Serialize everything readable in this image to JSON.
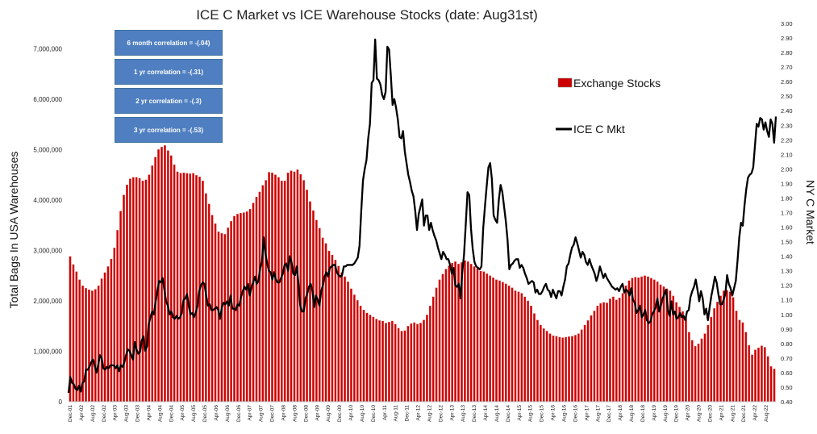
{
  "chart_data": {
    "type": "bar+line",
    "title": "ICE C Market vs ICE Warehouse Stocks (date:  Aug31st)",
    "ylabel": "Total Bags In USA Warehouses",
    "y2label": "NY C Market",
    "ylim": [
      0,
      7500000
    ],
    "y2lim": [
      0.4,
      3.0
    ],
    "y_ticks": [
      "0",
      "1,000,000",
      "2,000,000",
      "3,000,000",
      "4,000,000",
      "5,000,000",
      "6,000,000",
      "7,000,000"
    ],
    "y2_ticks": [
      "0.40",
      "0.50",
      "0.60",
      "0.70",
      "0.80",
      "0.90",
      "1.00",
      "1.10",
      "1.20",
      "1.30",
      "1.40",
      "1.50",
      "1.60",
      "1.70",
      "1.80",
      "1.90",
      "2.00",
      "2.10",
      "2.20",
      "2.30",
      "2.40",
      "2.50",
      "2.60",
      "2.70",
      "2.80",
      "2.90",
      "3.00"
    ],
    "x_ticks": [
      "Dec-01",
      "Apr-02",
      "Aug-02",
      "Dec-02",
      "Apr-03",
      "Aug-03",
      "Dec-03",
      "Apr-04",
      "Aug-04",
      "Dec-04",
      "Apr-05",
      "Aug-05",
      "Dec-05",
      "Apr-06",
      "Aug-06",
      "Dec-06",
      "Apr-07",
      "Aug-07",
      "Dec-07",
      "Apr-08",
      "Aug-08",
      "Dec-08",
      "Apr-09",
      "Aug-09",
      "Dec-09",
      "Apr-10",
      "Aug-10",
      "Dec-10",
      "Apr-11",
      "Aug-11",
      "Dec-11",
      "Apr-12",
      "Aug-12",
      "Dec-12",
      "Apr-13",
      "Aug-13",
      "Dec-13",
      "Apr-14",
      "Aug-14",
      "Dec-14",
      "Apr-15",
      "Aug-15",
      "Dec-15",
      "Apr-16",
      "Aug-16",
      "Dec-16",
      "Apr-17",
      "Aug-17",
      "Dec-17",
      "Apr-18",
      "Aug-18",
      "Dec-18",
      "Apr-19",
      "Aug-19",
      "Dec-19",
      "Apr-20",
      "Aug-20",
      "Dec-20",
      "Apr-21",
      "Aug-21",
      "Dec-21",
      "Apr-22",
      "Aug-22"
    ],
    "grid": false,
    "legend_position": "right",
    "colors": {
      "bars": "#cc0000",
      "bar_edge": "#e06666",
      "line": "#000000"
    },
    "series": [
      {
        "name": "Exchange Stocks",
        "kind": "bar",
        "axis": "left",
        "values": [
          2880000,
          2720000,
          2580000,
          2420000,
          2300000,
          2250000,
          2220000,
          2200000,
          2230000,
          2300000,
          2440000,
          2560000,
          2680000,
          2830000,
          3050000,
          3400000,
          3780000,
          4100000,
          4300000,
          4420000,
          4450000,
          4450000,
          4430000,
          4380000,
          4400000,
          4500000,
          4680000,
          4850000,
          5000000,
          5050000,
          5080000,
          4980000,
          4880000,
          4700000,
          4560000,
          4530000,
          4540000,
          4530000,
          4520000,
          4530000,
          4490000,
          4460000,
          4380000,
          4130000,
          3920000,
          3700000,
          3530000,
          3370000,
          3340000,
          3320000,
          3450000,
          3580000,
          3680000,
          3720000,
          3740000,
          3750000,
          3770000,
          3820000,
          3940000,
          4060000,
          4160000,
          4290000,
          4390000,
          4550000,
          4540000,
          4500000,
          4450000,
          4380000,
          4380000,
          4540000,
          4580000,
          4560000,
          4600000,
          4510000,
          4390000,
          4200000,
          3970000,
          3790000,
          3600000,
          3440000,
          3250000,
          3140000,
          2990000,
          2910000,
          2810000,
          2690000,
          2560000,
          2480000,
          2380000,
          2240000,
          2120000,
          2010000,
          1900000,
          1820000,
          1760000,
          1720000,
          1680000,
          1640000,
          1610000,
          1600000,
          1560000,
          1580000,
          1600000,
          1540000,
          1460000,
          1400000,
          1410000,
          1500000,
          1550000,
          1570000,
          1540000,
          1560000,
          1620000,
          1720000,
          1900000,
          2080000,
          2260000,
          2420000,
          2530000,
          2630000,
          2700000,
          2750000,
          2780000,
          2730000,
          2760000,
          2800000,
          2780000,
          2730000,
          2680000,
          2640000,
          2590000,
          2580000,
          2540000,
          2500000,
          2460000,
          2420000,
          2400000,
          2370000,
          2340000,
          2300000,
          2260000,
          2200000,
          2180000,
          2150000,
          2080000,
          2000000,
          1900000,
          1750000,
          1620000,
          1520000,
          1450000,
          1400000,
          1350000,
          1310000,
          1300000,
          1280000,
          1270000,
          1280000,
          1290000,
          1300000,
          1320000,
          1350000,
          1430000,
          1520000,
          1610000,
          1710000,
          1800000,
          1900000,
          1950000,
          1970000,
          1960000,
          2040000,
          2080000,
          2020000,
          2060000,
          2150000,
          2300000,
          2400000,
          2450000,
          2470000,
          2460000,
          2480000,
          2500000,
          2480000,
          2450000,
          2420000,
          2380000,
          2320000,
          2280000,
          2240000,
          2200000,
          2100000,
          1970000,
          1880000,
          1790000,
          1650000,
          1380000,
          1220000,
          1100000,
          1150000,
          1250000,
          1350000,
          1520000,
          1680000,
          1850000,
          1980000,
          2100000,
          2200000,
          2210000,
          2180000,
          2070000,
          1800000,
          1620000,
          1570000,
          1380000,
          1120000,
          930000,
          1030000,
          1070000,
          1110000,
          1080000,
          900000,
          700000,
          650000
        ]
      },
      {
        "name": "ICE C Mkt",
        "kind": "line",
        "axis": "right",
        "values": [
          0.46,
          0.57,
          0.53,
          0.52,
          0.49,
          0.48,
          0.51,
          0.47,
          0.53,
          0.54,
          0.62,
          0.62,
          0.64,
          0.67,
          0.69,
          0.65,
          0.6,
          0.65,
          0.72,
          0.7,
          0.63,
          0.62,
          0.64,
          0.63,
          0.65,
          0.65,
          0.65,
          0.63,
          0.65,
          0.61,
          0.65,
          0.64,
          0.67,
          0.72,
          0.76,
          0.75,
          0.72,
          0.69,
          0.81,
          0.76,
          0.73,
          0.74,
          0.82,
          0.85,
          0.75,
          0.78,
          0.93,
          0.98,
          1.02,
          1.0,
          1.09,
          1.16,
          1.23,
          1.22,
          1.25,
          1.17,
          1.09,
          1.06,
          1.0,
          1.02,
          0.98,
          0.97,
          0.99,
          0.97,
          0.98,
          1.01,
          1.1,
          1.11,
          1.14,
          1.06,
          1.0,
          1.01,
          0.98,
          1.01,
          1.06,
          1.16,
          1.2,
          1.22,
          1.21,
          1.13,
          1.06,
          1.07,
          1.03,
          1.03,
          1.04,
          1.05,
          1.03,
          0.97,
          1.05,
          1.08,
          1.07,
          1.09,
          1.06,
          1.13,
          1.04,
          1.04,
          1.03,
          1.07,
          1.06,
          1.12,
          1.16,
          1.19,
          1.17,
          1.21,
          1.13,
          1.19,
          1.22,
          1.26,
          1.21,
          1.23,
          1.32,
          1.36,
          1.53,
          1.42,
          1.35,
          1.3,
          1.29,
          1.24,
          1.29,
          1.24,
          1.22,
          1.22,
          1.25,
          1.28,
          1.34,
          1.35,
          1.3,
          1.4,
          1.36,
          1.28,
          1.27,
          1.33,
          1.21,
          1.06,
          1.02,
          1.02,
          1.11,
          1.14,
          1.19,
          1.21,
          1.16,
          1.05,
          1.13,
          1.1,
          1.06,
          1.16,
          1.2,
          1.26,
          1.29,
          1.26,
          1.32,
          1.33,
          1.34,
          1.34,
          1.29,
          1.27,
          1.26,
          1.27,
          1.33,
          1.33,
          1.34,
          1.34,
          1.34,
          1.34,
          1.35,
          1.37,
          1.39,
          1.47,
          1.71,
          1.92,
          2.0,
          2.06,
          2.21,
          2.31,
          2.59,
          2.61,
          2.89,
          2.62,
          2.61,
          2.58,
          2.51,
          2.48,
          2.53,
          2.84,
          2.82,
          2.64,
          2.44,
          2.48,
          2.42,
          2.34,
          2.22,
          2.21,
          2.26,
          2.12,
          2.04,
          1.96,
          1.91,
          1.85,
          1.81,
          1.71,
          1.58,
          1.69,
          1.74,
          1.79,
          1.61,
          1.68,
          1.68,
          1.58,
          1.63,
          1.58,
          1.54,
          1.51,
          1.46,
          1.42,
          1.38,
          1.43,
          1.41,
          1.38,
          1.38,
          1.34,
          1.28,
          1.32,
          1.2,
          1.19,
          1.21,
          1.11,
          1.29,
          1.41,
          1.62,
          1.84,
          1.82,
          1.59,
          1.45,
          1.36,
          1.33,
          1.32,
          1.31,
          1.33,
          1.59,
          1.74,
          1.88,
          2.01,
          2.04,
          1.93,
          1.68,
          1.65,
          1.63,
          1.79,
          1.89,
          1.84,
          1.74,
          1.64,
          1.51,
          1.31,
          1.34,
          1.35,
          1.37,
          1.38,
          1.38,
          1.32,
          1.34,
          1.32,
          1.28,
          1.25,
          1.21,
          1.22,
          1.23,
          1.22,
          1.15,
          1.17,
          1.14,
          1.14,
          1.16,
          1.19,
          1.21,
          1.17,
          1.16,
          1.12,
          1.17,
          1.14,
          1.11,
          1.16,
          1.16,
          1.13,
          1.19,
          1.24,
          1.33,
          1.35,
          1.41,
          1.46,
          1.48,
          1.53,
          1.49,
          1.44,
          1.39,
          1.43,
          1.41,
          1.36,
          1.34,
          1.38,
          1.34,
          1.31,
          1.28,
          1.23,
          1.27,
          1.33,
          1.29,
          1.25,
          1.28,
          1.25,
          1.23,
          1.21,
          1.19,
          1.18,
          1.17,
          1.18,
          1.16,
          1.19,
          1.21,
          1.15,
          1.17,
          1.16,
          1.13,
          1.18,
          1.1,
          1.08,
          1.01,
          1.03,
          1.06,
          0.98,
          1.0,
          1.03,
          0.96,
          0.94,
          0.95,
          1.0,
          1.02,
          1.05,
          1.11,
          1.02,
          1.06,
          1.11,
          1.14,
          1.17,
          1.03,
          0.99,
          1.09,
          1.0,
          1.02,
          0.97,
          0.98,
          1.01,
          0.98,
          0.99,
          0.96,
          1.02,
          1.03,
          1.12,
          1.16,
          1.19,
          1.24,
          1.17,
          1.09,
          1.16,
          1.11,
          1.0,
          1.04,
          0.96,
          1.05,
          1.13,
          1.19,
          1.26,
          1.22,
          1.14,
          1.07,
          1.07,
          1.1,
          1.14,
          1.27,
          1.21,
          1.18,
          1.13,
          1.18,
          1.23,
          1.37,
          1.53,
          1.63,
          1.61,
          1.75,
          1.86,
          1.94,
          1.96,
          1.97,
          2.01,
          2.16,
          2.31,
          2.29,
          2.35,
          2.34,
          2.27,
          2.32,
          2.26,
          2.22,
          2.34,
          2.31,
          2.18,
          2.36
        ]
      }
    ]
  },
  "legend": {
    "bars_label": "Exchange Stocks",
    "line_label": "ICE C Mkt"
  },
  "correlations": [
    "6 month correlation = -(.04)",
    "1  yr correlation = -(.31)",
    "2 yr correlation = -(.3)",
    "3 yr correlation = -(.53)"
  ]
}
